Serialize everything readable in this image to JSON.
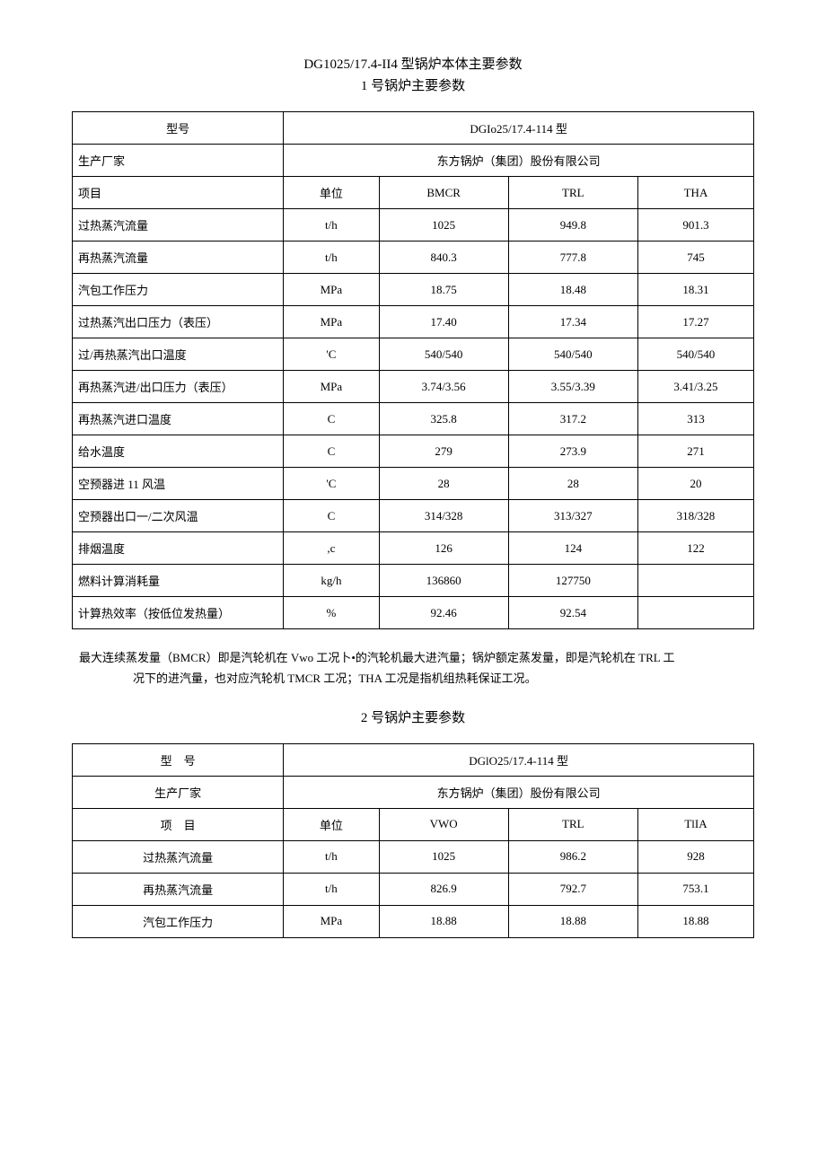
{
  "doc": {
    "main_title": "DG1025/17.4-II4 型锅炉本体主要参数",
    "section1_title": "1 号锅炉主要参数",
    "section2_title": "2 号锅炉主要参数",
    "note_line1": "最大连续蒸发量（BMCR）即是汽轮机在 Vwo 工况卜•的汽轮机最大进汽量；锅炉额定蒸发量，即是汽轮机在 TRL 工",
    "note_line2": "况下的进汽量，也对应汽轮机 TMCR 工况；THA 工况是指机组热耗保证工况。"
  },
  "table1": {
    "model_label": "型号",
    "model_value": "DGIo25/17.4-114 型",
    "maker_label": "生产厂家",
    "maker_value": "东方锅炉（集团）股份有限公司",
    "header": {
      "item": "项目",
      "unit": "单位",
      "c1": "BMCR",
      "c2": "TRL",
      "c3": "THA"
    },
    "rows": [
      {
        "label": "过热蒸汽流量",
        "unit": "t/h",
        "v1": "1025",
        "v2": "949.8",
        "v3": "901.3"
      },
      {
        "label": "再热蒸汽流量",
        "unit": "t/h",
        "v1": "840.3",
        "v2": "777.8",
        "v3": "745"
      },
      {
        "label": "汽包工作压力",
        "unit": "MPa",
        "v1": "18.75",
        "v2": "18.48",
        "v3": "18.31"
      },
      {
        "label": "过热蒸汽出口压力（表压）",
        "unit": "MPa",
        "v1": "17.40",
        "v2": "17.34",
        "v3": "17.27"
      },
      {
        "label": "过/再热蒸汽出口温度",
        "unit": "'C",
        "v1": "540/540",
        "v2": "540/540",
        "v3": "540/540"
      },
      {
        "label": "再热蒸汽进/出口压力（表压）",
        "unit": "MPa",
        "v1": "3.74/3.56",
        "v2": "3.55/3.39",
        "v3": "3.41/3.25"
      },
      {
        "label": "再热蒸汽进口温度",
        "unit": "C",
        "v1": "325.8",
        "v2": "317.2",
        "v3": "313"
      },
      {
        "label": "给水温度",
        "unit": "C",
        "v1": "279",
        "v2": "273.9",
        "v3": "271"
      },
      {
        "label": "空预器进 11 风温",
        "unit": "'C",
        "v1": "28",
        "v2": "28",
        "v3": "20"
      },
      {
        "label": "空预器出口一/二次风温",
        "unit": "C",
        "v1": "314/328",
        "v2": "313/327",
        "v3": "318/328"
      },
      {
        "label": "排烟温度",
        "unit": ",c",
        "v1": "126",
        "v2": "124",
        "v3": "122"
      },
      {
        "label": "燃料计算消耗量",
        "unit": "kg/h",
        "v1": "136860",
        "v2": "127750",
        "v3": ""
      },
      {
        "label": "计算热效率（按低位发热量）",
        "unit": "%",
        "v1": "92.46",
        "v2": "92.54",
        "v3": ""
      }
    ]
  },
  "table2": {
    "model_label": "型　号",
    "model_value": "DGlO25/17.4-114 型",
    "maker_label": "生产厂家",
    "maker_value": "东方锅炉（集团）股份有限公司",
    "header": {
      "item": "项　目",
      "unit": "单位",
      "c1": "VWO",
      "c2": "TRL",
      "c3": "TlIA"
    },
    "rows": [
      {
        "label": "过热蒸汽流量",
        "unit": "t/h",
        "v1": "1025",
        "v2": "986.2",
        "v3": "928"
      },
      {
        "label": "再热蒸汽流量",
        "unit": "t/h",
        "v1": "826.9",
        "v2": "792.7",
        "v3": "753.1"
      },
      {
        "label": "汽包工作压力",
        "unit": "MPa",
        "v1": "18.88",
        "v2": "18.88",
        "v3": "18.88"
      }
    ]
  },
  "style": {
    "border_color": "#000000",
    "bg_color": "#ffffff",
    "text_color": "#000000",
    "base_fontsize": 13,
    "title_fontsize": 15
  }
}
